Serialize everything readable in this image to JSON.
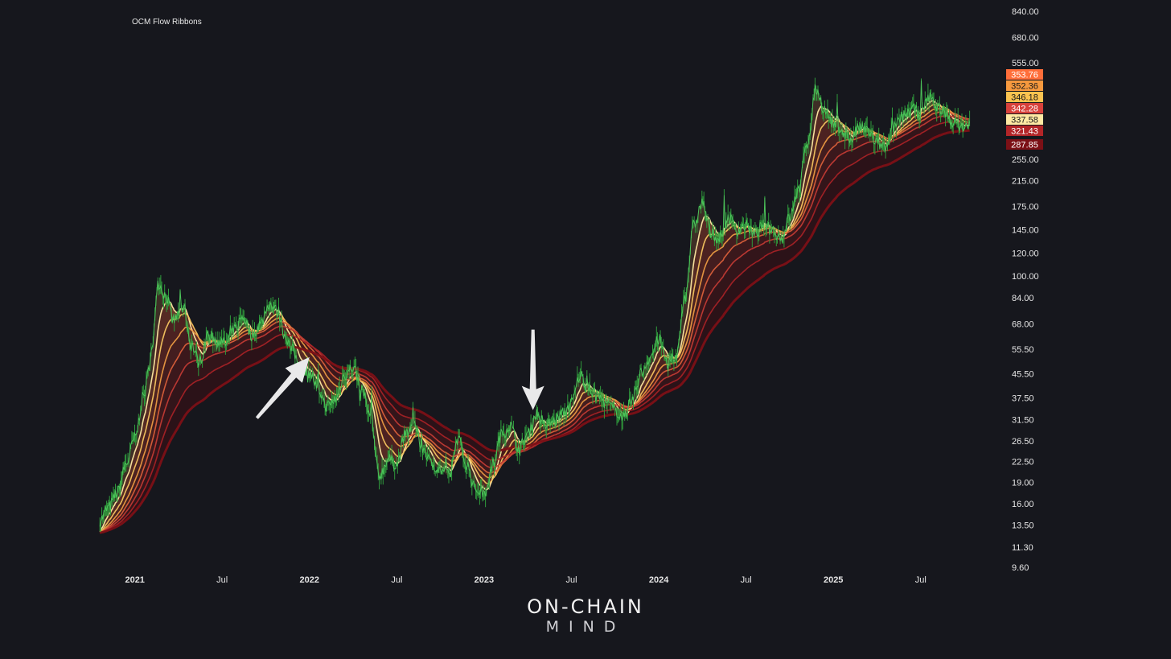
{
  "brand": {
    "line1": "ON-CHAIN",
    "line2": "MIND"
  },
  "colors": {
    "background": "#16171d",
    "price": "#4cc45a",
    "ribbon": [
      "#ffe9a3",
      "#f6c560",
      "#eb9a42",
      "#d95f3a",
      "#c13a34",
      "#a52226",
      "#7c1016"
    ]
  },
  "chart_data": {
    "type": "line",
    "title": "OCM Flow Ribbons",
    "yscale": "log",
    "ylim": [
      9.6,
      840
    ],
    "y_ticks": [
      "840.00",
      "680.00",
      "555.00",
      "255.00",
      "215.00",
      "175.00",
      "145.00",
      "120.00",
      "100.00",
      "84.00",
      "68.00",
      "55.50",
      "45.50",
      "37.50",
      "31.50",
      "26.50",
      "22.50",
      "19.00",
      "16.00",
      "13.50",
      "11.30",
      "9.60"
    ],
    "x_ticks": [
      {
        "label": "2021",
        "t": 2021.0,
        "major": true
      },
      {
        "label": "Jul",
        "t": 2021.5,
        "major": false
      },
      {
        "label": "2022",
        "t": 2022.0,
        "major": true
      },
      {
        "label": "Jul",
        "t": 2022.5,
        "major": false
      },
      {
        "label": "2023",
        "t": 2023.0,
        "major": true
      },
      {
        "label": "Jul",
        "t": 2023.5,
        "major": false
      },
      {
        "label": "2024",
        "t": 2024.0,
        "major": true
      },
      {
        "label": "Jul",
        "t": 2024.5,
        "major": false
      },
      {
        "label": "2025",
        "t": 2025.0,
        "major": true
      },
      {
        "label": "Jul",
        "t": 2025.5,
        "major": false
      }
    ],
    "xlim": [
      2020.67,
      2025.92
    ],
    "last_values": [
      {
        "value": "353.76",
        "bg": "#ff6e3a",
        "fg": "#ffffff"
      },
      {
        "value": "352.36",
        "bg": "#f6993e",
        "fg": "#1a1a1a"
      },
      {
        "value": "346.18",
        "bg": "#fbc350",
        "fg": "#1a1a1a"
      },
      {
        "value": "342.28",
        "bg": "#d8413b",
        "fg": "#ffffff"
      },
      {
        "value": "337.58",
        "bg": "#ffe9a3",
        "fg": "#1a1a1a"
      },
      {
        "value": "321.43",
        "bg": "#b32528",
        "fg": "#ffffff"
      },
      {
        "value": "287.85",
        "bg": "#7c1016",
        "fg": "#ffffff"
      }
    ],
    "price_series": {
      "t": [
        2020.8,
        2020.85,
        2020.9,
        2020.95,
        2021.0,
        2021.05,
        2021.1,
        2021.13,
        2021.18,
        2021.22,
        2021.28,
        2021.32,
        2021.37,
        2021.42,
        2021.47,
        2021.52,
        2021.57,
        2021.62,
        2021.67,
        2021.72,
        2021.77,
        2021.82,
        2021.86,
        2021.9,
        2021.95,
        2022.0,
        2022.05,
        2022.1,
        2022.15,
        2022.2,
        2022.25,
        2022.3,
        2022.35,
        2022.4,
        2022.45,
        2022.5,
        2022.55,
        2022.6,
        2022.65,
        2022.7,
        2022.75,
        2022.8,
        2022.85,
        2022.9,
        2022.95,
        2023.0,
        2023.05,
        2023.1,
        2023.15,
        2023.2,
        2023.25,
        2023.3,
        2023.35,
        2023.4,
        2023.45,
        2023.5,
        2023.55,
        2023.6,
        2023.65,
        2023.7,
        2023.75,
        2023.8,
        2023.85,
        2023.9,
        2023.95,
        2024.0,
        2024.05,
        2024.1,
        2024.15,
        2024.2,
        2024.25,
        2024.3,
        2024.35,
        2024.4,
        2024.45,
        2024.5,
        2024.55,
        2024.6,
        2024.65,
        2024.7,
        2024.75,
        2024.8,
        2024.85,
        2024.9,
        2024.95,
        2025.0,
        2025.05,
        2025.1,
        2025.15,
        2025.2,
        2025.25,
        2025.3,
        2025.35,
        2025.4,
        2025.45,
        2025.5,
        2025.55,
        2025.6,
        2025.65,
        2025.7,
        2025.75,
        2025.78
      ],
      "y": [
        14.0,
        15.5,
        17.5,
        22.0,
        27.0,
        38.0,
        55.0,
        95.0,
        85.0,
        70.0,
        78.0,
        58.0,
        50.0,
        62.0,
        60.0,
        58.0,
        65.0,
        72.0,
        62.0,
        68.0,
        80.0,
        75.0,
        62.0,
        55.0,
        48.0,
        46.0,
        40.0,
        35.0,
        37.0,
        45.0,
        48.0,
        40.0,
        32.0,
        20.0,
        23.0,
        22.0,
        28.0,
        30.0,
        25.0,
        22.0,
        21.0,
        20.0,
        27.0,
        22.0,
        18.0,
        17.5,
        22.0,
        28.0,
        30.0,
        25.0,
        28.0,
        33.0,
        30.0,
        31.0,
        33.0,
        36.0,
        45.0,
        40.0,
        38.0,
        36.0,
        34.0,
        32.0,
        37.0,
        46.0,
        52.0,
        60.0,
        50.0,
        52.0,
        85.0,
        150.0,
        180.0,
        140.0,
        135.0,
        160.0,
        145.0,
        150.0,
        140.0,
        150.0,
        145.0,
        135.0,
        160.0,
        200.0,
        290.0,
        450.0,
        380.0,
        340.0,
        320.0,
        300.0,
        330.0,
        320.0,
        290.0,
        280.0,
        330.0,
        360.0,
        380.0,
        370.0,
        420.0,
        390.0,
        360.0,
        340.0,
        330.0,
        335.0
      ]
    },
    "ribbon_series": [
      {
        "spans": [
          8,
          16
        ],
        "lag": [
          0.04,
          0.06
        ],
        "fill_to_next": "#8a3a2a"
      },
      {
        "spans": [
          18,
          30
        ],
        "lag": [
          0.07,
          0.09
        ],
        "fill_to_next": "#7a2c24"
      },
      {
        "spans": [
          34,
          45
        ],
        "lag": [
          0.11,
          0.13
        ],
        "fill_to_next": "#6a2220"
      },
      {
        "spans": [
          50,
          60
        ],
        "lag": [
          0.15,
          0.17
        ],
        "fill_to_next": "#5b1a1c"
      },
      {
        "spans": [
          70,
          80
        ],
        "lag": [
          0.2,
          0.22
        ],
        "fill_to_next": "#4c1418"
      },
      {
        "spans": [
          95,
          110
        ],
        "lag": [
          0.25,
          0.28
        ],
        "fill_to_next": "#3e0f14"
      },
      {
        "spans": [
          130,
          150
        ],
        "lag": [
          0.32,
          0.35
        ],
        "fill_to_next": ""
      }
    ],
    "annotations": [
      {
        "type": "arrow",
        "direction": "up-right",
        "at_t": 2022.0,
        "at_y": 52.0
      },
      {
        "type": "arrow",
        "direction": "down",
        "at_t": 2023.28,
        "at_y": 34.0
      }
    ]
  }
}
